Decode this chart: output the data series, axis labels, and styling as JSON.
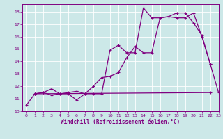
{
  "xlabel": "Windchill (Refroidissement éolien,°C)",
  "background_color": "#cce8e8",
  "grid_color": "#ffffff",
  "line_color": "#800080",
  "xlim": [
    -0.5,
    23
  ],
  "ylim": [
    10,
    18.6
  ],
  "xticks": [
    0,
    1,
    2,
    3,
    4,
    5,
    6,
    7,
    8,
    9,
    10,
    11,
    12,
    13,
    14,
    15,
    16,
    17,
    18,
    19,
    20,
    21,
    22,
    23
  ],
  "yticks": [
    10,
    11,
    12,
    13,
    14,
    15,
    16,
    17,
    18
  ],
  "line1_x": [
    0,
    1,
    2,
    3,
    4,
    5,
    6,
    7,
    8,
    9,
    10,
    11,
    12,
    13,
    14,
    15,
    16,
    17,
    18,
    19,
    20,
    21,
    22
  ],
  "line1_y": [
    10.5,
    11.4,
    11.5,
    11.3,
    11.4,
    11.4,
    10.9,
    11.4,
    12.0,
    12.7,
    12.8,
    13.1,
    14.3,
    15.2,
    14.7,
    14.7,
    17.5,
    17.6,
    17.5,
    17.5,
    17.9,
    16.0,
    13.8
  ],
  "line2_x": [
    1,
    2,
    3,
    4,
    5,
    6,
    7,
    8,
    9,
    10,
    11,
    12,
    13,
    14,
    15,
    16,
    17,
    18,
    19,
    20,
    21,
    22,
    23
  ],
  "line2_y": [
    11.4,
    11.5,
    11.8,
    11.4,
    11.5,
    11.6,
    11.4,
    11.4,
    11.4,
    14.9,
    15.3,
    14.7,
    14.7,
    18.3,
    17.5,
    17.5,
    17.6,
    17.9,
    17.9,
    17.1,
    16.1,
    13.8,
    11.5
  ],
  "line3_x": [
    1,
    22
  ],
  "line3_y": [
    11.4,
    11.5
  ]
}
